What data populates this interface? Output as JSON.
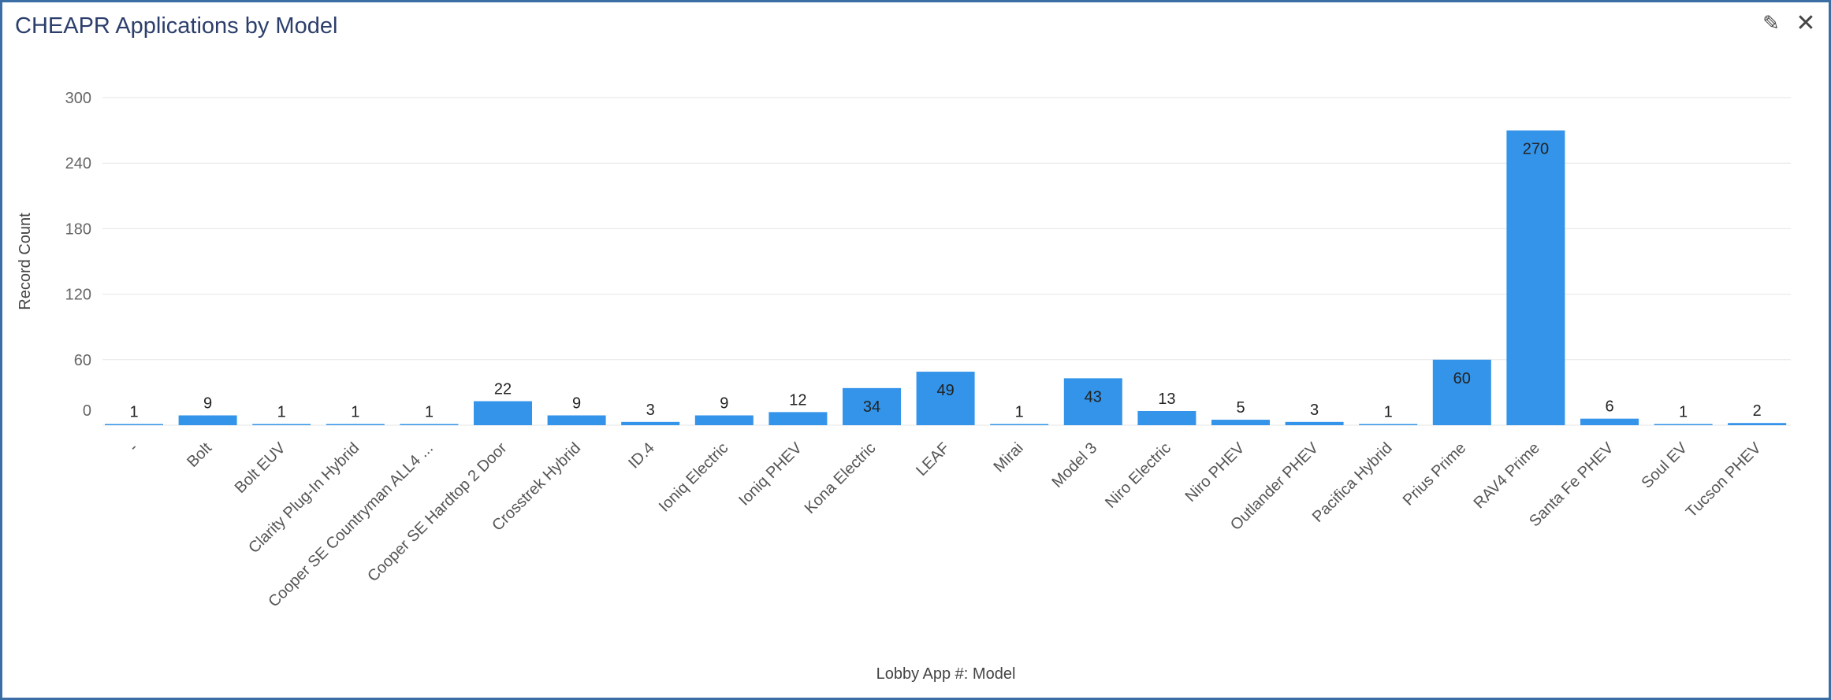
{
  "window": {
    "title": "CHEAPR Applications by Model",
    "edit_icon": "pencil-icon",
    "close_icon": "close-icon",
    "edit_glyph": "✎",
    "close_glyph": "✕"
  },
  "colors": {
    "bar": "#3394e9",
    "grid": "#e6e6e6",
    "title": "#2c3e6b",
    "border": "#3a6ea5"
  },
  "chart_data": {
    "type": "bar",
    "title": "CHEAPR Applications by Model",
    "xlabel": "Lobby App #: Model",
    "ylabel": "Record Count",
    "ylim": [
      0,
      300
    ],
    "yticks": [
      0,
      60,
      120,
      180,
      240,
      300
    ],
    "grid": true,
    "legend": "none",
    "categories": [
      "-",
      "Bolt",
      "Bolt EUV",
      "Clarity Plug-In Hybrid",
      "Cooper SE Countryman ALL4 ...",
      "Cooper SE Hardtop 2 Door",
      "Crosstrek Hybrid",
      "ID.4",
      "Ioniq Electric",
      "Ioniq PHEV",
      "Kona Electric",
      "LEAF",
      "Mirai",
      "Model 3",
      "Niro Electric",
      "Niro PHEV",
      "Outlander PHEV",
      "Pacifica Hybrid",
      "Prius Prime",
      "RAV4 Prime",
      "Santa Fe PHEV",
      "Soul EV",
      "Tucson PHEV"
    ],
    "values": [
      1,
      9,
      1,
      1,
      1,
      22,
      9,
      3,
      9,
      12,
      34,
      49,
      1,
      43,
      13,
      5,
      3,
      1,
      60,
      270,
      6,
      1,
      2
    ]
  }
}
